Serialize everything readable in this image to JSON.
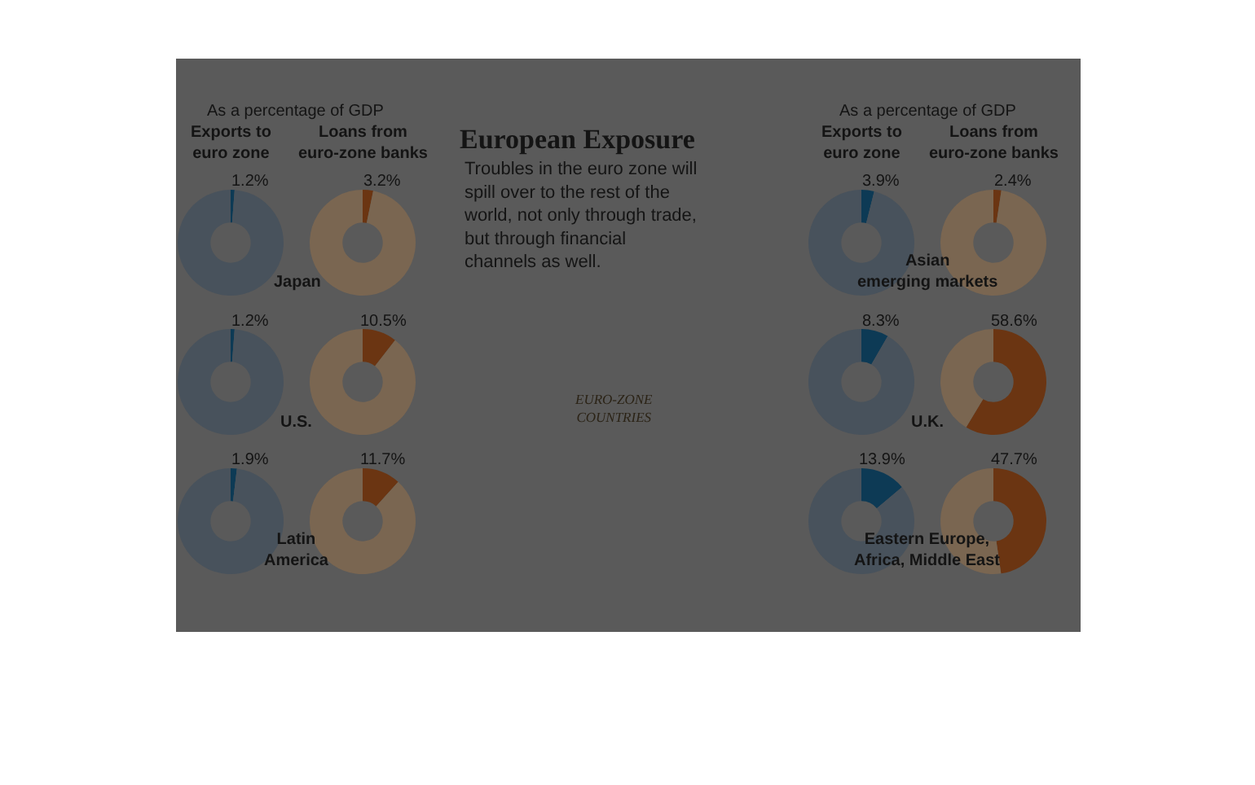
{
  "chart_data": [
    {
      "type": "other",
      "title": "European Exposure",
      "subtitle": "Troubles in the euro zone will\nspill over to the rest of the\nworld, not only through trade,\nbut through financial\nchannels as well.",
      "annotations": [
        "As a percentage of GDP",
        "As a percentage of GDP",
        "EURO-ZONE\nCOUNTRIES"
      ]
    },
    {
      "type": "donut",
      "title": "Exports to\neuro zone",
      "annotations": [
        "Japan"
      ],
      "categories": [
        null,
        null
      ],
      "values": [
        1.2,
        98.8
      ],
      "colors": [
        "#0d3a55",
        "#48525c"
      ],
      "value_labels": [
        "1.2%",
        null
      ]
    },
    {
      "type": "donut",
      "title": "Loans from\neuro-zone banks",
      "categories": [
        null,
        null
      ],
      "values": [
        3.2,
        96.8
      ],
      "colors": [
        "#6b3512",
        "#7a6651"
      ],
      "value_labels": [
        "3.2%",
        null
      ]
    },
    {
      "type": "donut",
      "annotations": [
        "U.S."
      ],
      "categories": [
        null,
        null
      ],
      "values": [
        1.2,
        98.8
      ],
      "colors": [
        "#0d3a55",
        "#48525c"
      ],
      "value_labels": [
        "1.2%",
        null
      ]
    },
    {
      "type": "donut",
      "categories": [
        null,
        null
      ],
      "values": [
        10.5,
        89.5
      ],
      "colors": [
        "#6b3512",
        "#7a6651"
      ],
      "value_labels": [
        "10.5%",
        null
      ]
    },
    {
      "type": "donut",
      "annotations": [
        "Latin\nAmerica"
      ],
      "categories": [
        null,
        null
      ],
      "values": [
        1.9,
        98.1
      ],
      "colors": [
        "#0d3a55",
        "#48525c"
      ],
      "value_labels": [
        "1.9%",
        null
      ]
    },
    {
      "type": "donut",
      "categories": [
        null,
        null
      ],
      "values": [
        11.7,
        88.3
      ],
      "colors": [
        "#6b3512",
        "#7a6651"
      ],
      "value_labels": [
        "11.7%",
        null
      ]
    },
    {
      "type": "donut",
      "title": "Exports to\neuro zone",
      "annotations": [
        "Asian\nemerging markets"
      ],
      "categories": [
        null,
        null
      ],
      "values": [
        3.9,
        96.1
      ],
      "colors": [
        "#0d3a55",
        "#48525c"
      ],
      "value_labels": [
        "3.9%",
        null
      ]
    },
    {
      "type": "donut",
      "title": "Loans from\neuro-zone banks",
      "categories": [
        null,
        null
      ],
      "values": [
        2.4,
        97.6
      ],
      "colors": [
        "#6b3512",
        "#7a6651"
      ],
      "value_labels": [
        "2.4%",
        null
      ]
    },
    {
      "type": "donut",
      "annotations": [
        "U.K."
      ],
      "categories": [
        null,
        null
      ],
      "values": [
        8.3,
        91.7
      ],
      "colors": [
        "#0d3a55",
        "#48525c"
      ],
      "value_labels": [
        "8.3%",
        null
      ]
    },
    {
      "type": "donut",
      "categories": [
        null,
        null
      ],
      "values": [
        58.6,
        41.4
      ],
      "colors": [
        "#6b3512",
        "#7a6651"
      ],
      "value_labels": [
        "58.6%",
        null
      ]
    },
    {
      "type": "donut",
      "annotations": [
        "Eastern Europe,\nAfrica, Middle East"
      ],
      "categories": [
        null,
        null
      ],
      "values": [
        13.9,
        86.1
      ],
      "colors": [
        "#0d3a55",
        "#48525c"
      ],
      "value_labels": [
        "13.9%",
        null
      ]
    },
    {
      "type": "donut",
      "categories": [
        null,
        null
      ],
      "values": [
        47.7,
        52.3
      ],
      "colors": [
        "#6b3512",
        "#7a6651"
      ],
      "value_labels": [
        "47.7%",
        null
      ]
    }
  ]
}
